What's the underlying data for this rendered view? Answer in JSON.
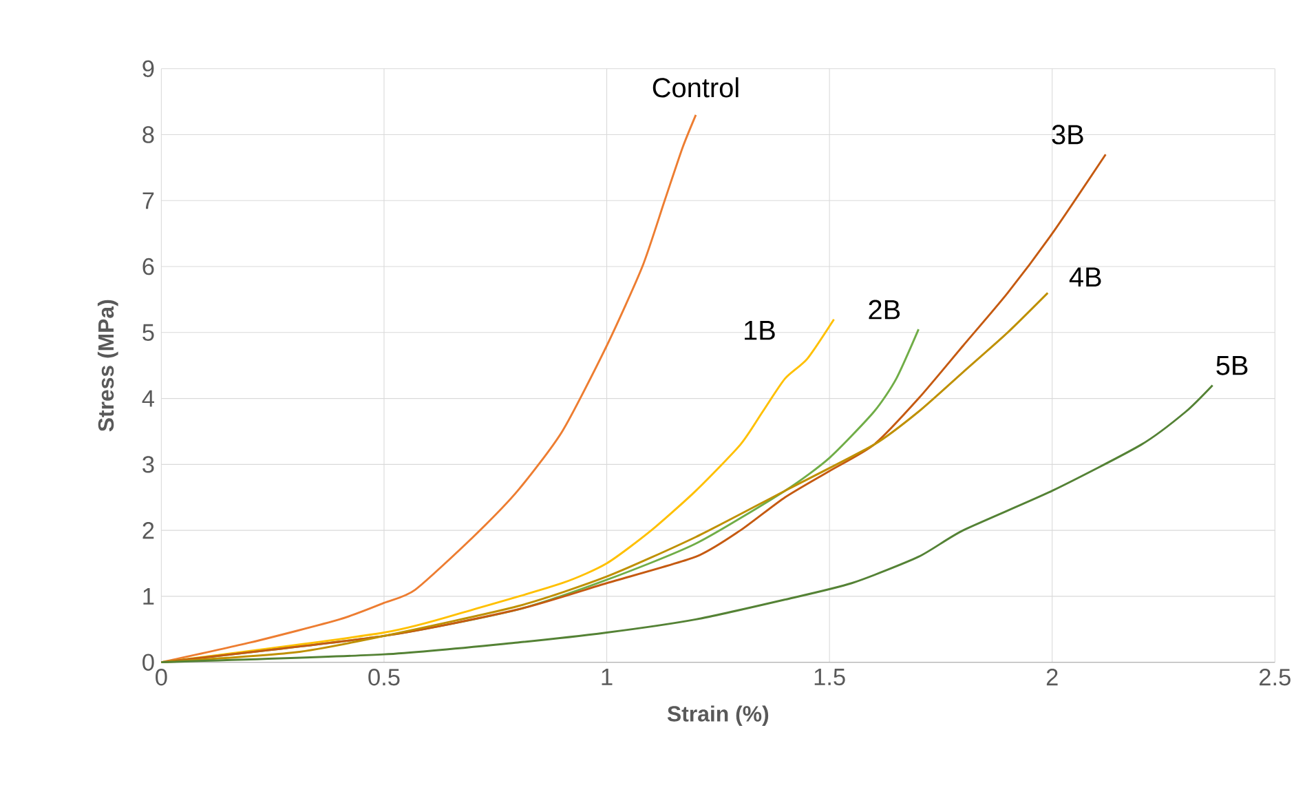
{
  "chart_data": {
    "type": "line",
    "xlabel": "Strain  (%)",
    "ylabel": "Stress (MPa)",
    "xlim": [
      0,
      2.5
    ],
    "ylim": [
      0,
      9
    ],
    "xticks": [
      0,
      0.5,
      1,
      1.5,
      2,
      2.5
    ],
    "yticks": [
      0,
      1,
      2,
      3,
      4,
      5,
      6,
      7,
      8,
      9
    ],
    "grid": true,
    "legend": false,
    "marker": "none",
    "line_style": "solid",
    "series": [
      {
        "name": "Control",
        "color": "#ed7d31",
        "x": [
          0,
          0.2,
          0.4,
          0.5,
          0.57,
          0.7,
          0.8,
          0.9,
          1.0,
          1.08,
          1.13,
          1.17,
          1.2
        ],
        "values": [
          0,
          0.3,
          0.65,
          0.9,
          1.1,
          1.9,
          2.6,
          3.5,
          4.8,
          6.0,
          7.0,
          7.8,
          8.3
        ]
      },
      {
        "name": "1B",
        "color": "#ffc000",
        "x": [
          0,
          0.5,
          0.7,
          0.9,
          1.0,
          1.1,
          1.2,
          1.3,
          1.35,
          1.4,
          1.45,
          1.51
        ],
        "values": [
          0,
          0.45,
          0.8,
          1.2,
          1.5,
          2.0,
          2.6,
          3.3,
          3.8,
          4.3,
          4.6,
          5.2
        ]
      },
      {
        "name": "2B",
        "color": "#70ad47",
        "x": [
          0,
          0.5,
          0.8,
          1.0,
          1.2,
          1.4,
          1.5,
          1.6,
          1.65,
          1.7
        ],
        "values": [
          0,
          0.4,
          0.8,
          1.25,
          1.8,
          2.6,
          3.1,
          3.8,
          4.3,
          5.05
        ]
      },
      {
        "name": "3B",
        "color": "#c55a11",
        "x": [
          0,
          0.5,
          0.8,
          1.0,
          1.2,
          1.3,
          1.4,
          1.5,
          1.6,
          1.7,
          1.8,
          1.9,
          2.0,
          2.12
        ],
        "values": [
          0,
          0.4,
          0.8,
          1.2,
          1.6,
          2.0,
          2.5,
          2.9,
          3.3,
          4.0,
          4.8,
          5.6,
          6.5,
          7.7
        ]
      },
      {
        "name": "4B",
        "color": "#bf9000",
        "x": [
          0,
          0.3,
          0.5,
          0.8,
          1.0,
          1.2,
          1.4,
          1.6,
          1.7,
          1.8,
          1.9,
          1.99
        ],
        "values": [
          0,
          0.15,
          0.4,
          0.85,
          1.3,
          1.9,
          2.6,
          3.3,
          3.8,
          4.4,
          5.0,
          5.6
        ]
      },
      {
        "name": "5B",
        "color": "#548235",
        "x": [
          0,
          0.5,
          0.8,
          1.0,
          1.2,
          1.4,
          1.55,
          1.7,
          1.8,
          2.0,
          2.2,
          2.3,
          2.36
        ],
        "values": [
          0,
          0.12,
          0.3,
          0.45,
          0.65,
          0.95,
          1.2,
          1.6,
          2.0,
          2.6,
          3.3,
          3.8,
          4.2
        ]
      }
    ]
  }
}
